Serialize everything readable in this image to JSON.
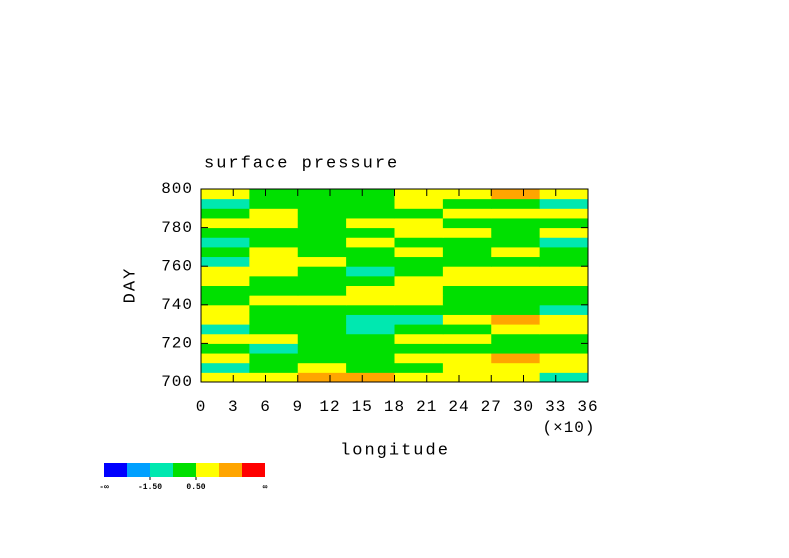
{
  "chart_data": {
    "type": "heatmap",
    "title": "surface pressure",
    "x_label": "longitude",
    "x_multiplier": "(×10)",
    "y_label": "DAY",
    "xlim": [
      0,
      36
    ],
    "xticks": [
      0,
      3,
      6,
      9,
      12,
      15,
      18,
      21,
      24,
      27,
      30,
      33,
      36
    ],
    "ylim": [
      700,
      800
    ],
    "yticks": [
      700,
      720,
      740,
      760,
      780,
      800
    ],
    "x": [
      2.25,
      6.75,
      11.25,
      15.75,
      20.25,
      24.75,
      29.25,
      33.75
    ],
    "y": [
      702.5,
      707.5,
      712.5,
      717.5,
      722.5,
      727.5,
      732.5,
      737.5,
      742.5,
      747.5,
      752.5,
      757.5,
      762.5,
      767.5,
      772.5,
      777.5,
      782.5,
      787.5,
      792.5,
      797.5
    ],
    "values": [
      [
        0.8,
        1.2,
        1.7,
        1.6,
        1.0,
        0.7,
        0.9,
        -0.6
      ],
      [
        -0.7,
        0.2,
        0.6,
        0.3,
        0.1,
        0.8,
        1.4,
        1.0
      ],
      [
        0.9,
        0.3,
        -0.3,
        0.0,
        1.0,
        1.3,
        1.7,
        1.2
      ],
      [
        0.2,
        -0.8,
        -0.2,
        0.1,
        0.3,
        0.0,
        -0.2,
        0.1
      ],
      [
        1.0,
        0.7,
        0.2,
        -0.3,
        0.6,
        0.9,
        0.3,
        0.2
      ],
      [
        -1.0,
        -0.4,
        0.1,
        -0.6,
        -0.2,
        0.4,
        0.7,
        1.0
      ],
      [
        0.8,
        0.3,
        -0.2,
        -0.9,
        -0.7,
        1.1,
        1.6,
        0.5
      ],
      [
        1.1,
        0.2,
        0.1,
        0.3,
        -0.3,
        0.0,
        -0.3,
        -0.8
      ],
      [
        0.2,
        0.9,
        1.2,
        0.7,
        0.6,
        0.3,
        0.2,
        0.0
      ],
      [
        0.0,
        -0.3,
        0.1,
        0.9,
        1.0,
        0.2,
        -0.4,
        0.3
      ],
      [
        0.6,
        0.1,
        -0.2,
        0.3,
        0.7,
        0.8,
        0.5,
        0.9
      ],
      [
        1.0,
        0.8,
        0.4,
        -0.7,
        -0.2,
        1.0,
        1.2,
        0.7
      ],
      [
        -0.6,
        0.6,
        1.1,
        0.2,
        0.0,
        -0.3,
        -0.1,
        0.3
      ],
      [
        0.3,
        1.0,
        0.2,
        -0.2,
        0.5,
        0.3,
        0.7,
        0.1
      ],
      [
        -0.7,
        0.1,
        0.3,
        0.8,
        -0.1,
        0.2,
        0.0,
        -0.6
      ],
      [
        0.2,
        0.0,
        -0.4,
        0.2,
        0.7,
        0.9,
        0.4,
        0.6
      ],
      [
        0.9,
        0.5,
        0.3,
        0.6,
        1.0,
        0.1,
        0.3,
        0.0
      ],
      [
        0.1,
        0.7,
        0.4,
        0.1,
        0.2,
        0.6,
        1.0,
        0.8
      ],
      [
        -0.6,
        0.2,
        -0.3,
        0.3,
        0.9,
        0.1,
        0.4,
        -0.9
      ],
      [
        0.7,
        0.3,
        0.1,
        0.2,
        0.6,
        1.1,
        1.6,
        0.9
      ]
    ],
    "colorbar": {
      "levels": [
        -2.5,
        -1.5,
        -0.5,
        0.5,
        1.5,
        2.5
      ],
      "colors": [
        "#0000ff",
        "#00a0ff",
        "#00e8b0",
        "#00e000",
        "#ffff00",
        "#ffa500",
        "#ff0000"
      ],
      "low_label": "-∞",
      "high_label": "∞",
      "ticks": [
        {
          "value": -1.5,
          "label": "-1.50"
        },
        {
          "value": 0.5,
          "label": "0.50"
        }
      ]
    }
  }
}
